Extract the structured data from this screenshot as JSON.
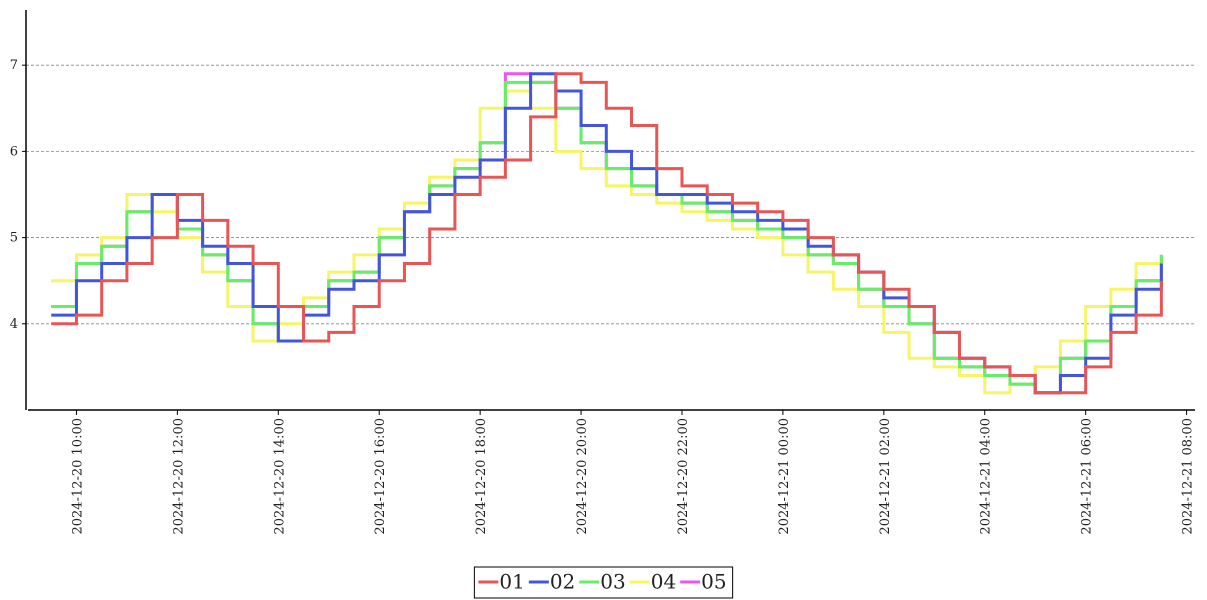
{
  "chart_data": {
    "type": "step-line",
    "x": [
      "2024-12-20 09:30",
      "2024-12-20 10:00",
      "2024-12-20 10:30",
      "2024-12-20 11:00",
      "2024-12-20 11:30",
      "2024-12-20 12:00",
      "2024-12-20 12:30",
      "2024-12-20 13:00",
      "2024-12-20 13:30",
      "2024-12-20 14:00",
      "2024-12-20 14:30",
      "2024-12-20 15:00",
      "2024-12-20 15:30",
      "2024-12-20 16:00",
      "2024-12-20 16:30",
      "2024-12-20 17:00",
      "2024-12-20 17:30",
      "2024-12-20 18:00",
      "2024-12-20 18:30",
      "2024-12-20 19:00",
      "2024-12-20 19:30",
      "2024-12-20 20:00",
      "2024-12-20 20:30",
      "2024-12-20 21:00",
      "2024-12-20 21:30",
      "2024-12-20 22:00",
      "2024-12-20 22:30",
      "2024-12-20 23:00",
      "2024-12-20 23:30",
      "2024-12-21 00:00",
      "2024-12-21 00:30",
      "2024-12-21 01:00",
      "2024-12-21 01:30",
      "2024-12-21 02:00",
      "2024-12-21 02:30",
      "2024-12-21 03:00",
      "2024-12-21 03:30",
      "2024-12-21 04:00",
      "2024-12-21 04:30",
      "2024-12-21 05:00",
      "2024-12-21 05:30",
      "2024-12-21 06:00",
      "2024-12-21 06:30",
      "2024-12-21 07:00",
      "2024-12-21 07:30"
    ],
    "series": [
      {
        "name": "01",
        "color": "#e85555",
        "values": [
          4.0,
          4.1,
          4.5,
          4.7,
          5.0,
          5.5,
          5.2,
          4.9,
          4.7,
          4.2,
          3.8,
          3.9,
          4.2,
          4.5,
          4.7,
          5.1,
          5.5,
          5.7,
          5.9,
          6.4,
          6.9,
          6.8,
          6.5,
          6.3,
          5.8,
          5.6,
          5.5,
          5.4,
          5.3,
          5.2,
          5.0,
          4.8,
          4.6,
          4.4,
          4.2,
          3.9,
          3.6,
          3.5,
          3.4,
          3.2,
          3.2,
          3.5,
          3.9,
          4.1,
          4.5
        ]
      },
      {
        "name": "02",
        "color": "#4455dd",
        "values": [
          4.1,
          4.5,
          4.7,
          5.0,
          5.5,
          5.2,
          4.9,
          4.7,
          4.2,
          3.8,
          4.1,
          4.4,
          4.5,
          4.8,
          5.3,
          5.5,
          5.7,
          5.9,
          6.5,
          6.9,
          6.7,
          6.3,
          6.0,
          5.8,
          5.5,
          5.5,
          5.4,
          5.3,
          5.2,
          5.1,
          4.9,
          4.8,
          4.6,
          4.3,
          4.2,
          3.9,
          3.6,
          3.5,
          3.4,
          3.2,
          3.4,
          3.6,
          4.1,
          4.4,
          4.7
        ]
      },
      {
        "name": "03",
        "color": "#66ee66",
        "values": [
          4.2,
          4.7,
          4.9,
          5.3,
          5.5,
          5.1,
          4.8,
          4.5,
          4.0,
          3.8,
          4.2,
          4.5,
          4.6,
          5.0,
          5.3,
          5.6,
          5.8,
          6.1,
          6.8,
          6.8,
          6.5,
          6.1,
          5.8,
          5.6,
          5.5,
          5.4,
          5.3,
          5.2,
          5.1,
          5.0,
          4.8,
          4.7,
          4.4,
          4.2,
          4.0,
          3.6,
          3.5,
          3.4,
          3.3,
          3.2,
          3.6,
          3.8,
          4.2,
          4.5,
          4.8
        ]
      },
      {
        "name": "04",
        "color": "#f5f566",
        "values": [
          4.5,
          4.8,
          5.0,
          5.5,
          5.3,
          5.0,
          4.6,
          4.2,
          3.8,
          4.0,
          4.3,
          4.6,
          4.8,
          5.1,
          5.4,
          5.7,
          5.9,
          6.5,
          6.7,
          6.5,
          6.0,
          5.8,
          5.6,
          5.5,
          5.4,
          5.3,
          5.2,
          5.1,
          5.0,
          4.8,
          4.6,
          4.4,
          4.2,
          3.9,
          3.6,
          3.5,
          3.4,
          3.2,
          3.3,
          3.5,
          3.8,
          4.2,
          4.4,
          4.7,
          4.8
        ]
      },
      {
        "name": "05",
        "color": "#ee55ee",
        "values": [
          4.2,
          4.7,
          4.9,
          5.3,
          5.5,
          5.1,
          4.8,
          4.5,
          4.0,
          3.8,
          4.2,
          4.5,
          4.6,
          5.0,
          5.3,
          5.6,
          5.8,
          6.1,
          6.9,
          6.8,
          6.5,
          6.1,
          5.8,
          5.6,
          5.5,
          5.4,
          5.3,
          5.2,
          5.1,
          5.0,
          4.8,
          4.7,
          4.4,
          4.2,
          4.0,
          3.6,
          3.5,
          3.4,
          3.3,
          3.2,
          3.6,
          3.8,
          4.2,
          4.5,
          4.8
        ]
      }
    ],
    "xlim": [
      "2024-12-20 09:00",
      "2024-12-21 08:10"
    ],
    "xticks": [
      "2024-12-20 10:00",
      "2024-12-20 12:00",
      "2024-12-20 14:00",
      "2024-12-20 16:00",
      "2024-12-20 18:00",
      "2024-12-20 20:00",
      "2024-12-20 22:00",
      "2024-12-21 00:00",
      "2024-12-21 02:00",
      "2024-12-21 04:00",
      "2024-12-21 06:00",
      "2024-12-21 08:00"
    ],
    "ylim": [
      3.0,
      7.64
    ],
    "yticks": [
      4,
      5,
      6,
      7
    ],
    "grid": true,
    "legend": "bottom"
  }
}
